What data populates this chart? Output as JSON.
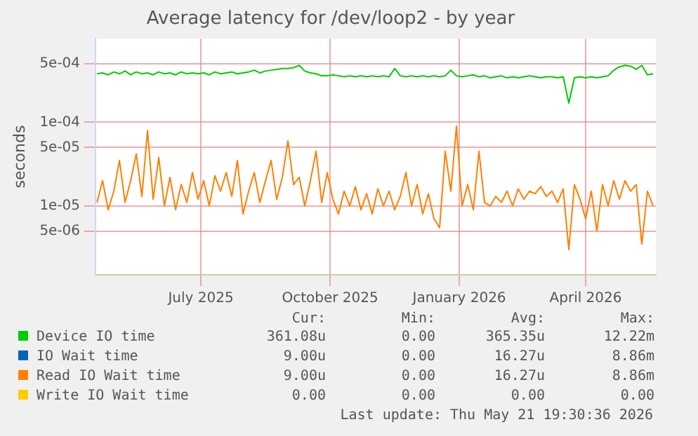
{
  "chart_data": {
    "type": "line",
    "title": "Average latency for /dev/loop2 - by year",
    "ylabel": "seconds",
    "x": [
      "2025-04-18",
      "2025-04-22",
      "2025-04-26",
      "2025-04-30",
      "2025-05-04",
      "2025-05-08",
      "2025-05-12",
      "2025-05-16",
      "2025-05-20",
      "2025-05-24",
      "2025-05-28",
      "2025-06-01",
      "2025-06-05",
      "2025-06-09",
      "2025-06-13",
      "2025-06-17",
      "2025-06-21",
      "2025-06-25",
      "2025-06-29",
      "2025-07-03",
      "2025-07-07",
      "2025-07-11",
      "2025-07-15",
      "2025-07-19",
      "2025-07-23",
      "2025-07-27",
      "2025-07-31",
      "2025-08-04",
      "2025-08-08",
      "2025-08-12",
      "2025-08-16",
      "2025-08-20",
      "2025-08-24",
      "2025-08-28",
      "2025-09-01",
      "2025-09-05",
      "2025-09-09",
      "2025-09-13",
      "2025-09-17",
      "2025-09-21",
      "2025-09-25",
      "2025-09-29",
      "2025-10-03",
      "2025-10-07",
      "2025-10-11",
      "2025-10-15",
      "2025-10-19",
      "2025-10-23",
      "2025-10-27",
      "2025-10-31",
      "2025-11-04",
      "2025-11-08",
      "2025-11-12",
      "2025-11-16",
      "2025-11-20",
      "2025-11-24",
      "2025-11-28",
      "2025-12-02",
      "2025-12-06",
      "2025-12-10",
      "2025-12-14",
      "2025-12-18",
      "2025-12-22",
      "2025-12-26",
      "2025-12-30",
      "2026-01-03",
      "2026-01-07",
      "2026-01-11",
      "2026-01-15",
      "2026-01-19",
      "2026-01-23",
      "2026-01-27",
      "2026-01-31",
      "2026-02-04",
      "2026-02-08",
      "2026-02-12",
      "2026-02-16",
      "2026-02-20",
      "2026-02-24",
      "2026-02-28",
      "2026-03-04",
      "2026-03-08",
      "2026-03-12",
      "2026-03-16",
      "2026-03-20",
      "2026-03-24",
      "2026-03-28",
      "2026-04-01",
      "2026-04-05",
      "2026-04-09",
      "2026-04-13",
      "2026-04-17",
      "2026-04-21",
      "2026-04-25",
      "2026-04-29",
      "2026-05-03",
      "2026-05-07",
      "2026-05-11",
      "2026-05-15",
      "2026-05-19"
    ],
    "series": [
      {
        "name": "Device IO time",
        "color": "#00cc00",
        "values": [
          0.00038,
          0.00039,
          0.00037,
          0.0004,
          0.00038,
          0.00041,
          0.00037,
          0.0004,
          0.00038,
          0.00039,
          0.00037,
          0.0004,
          0.00038,
          0.00039,
          0.00037,
          0.0004,
          0.00038,
          0.00039,
          0.00038,
          0.00039,
          0.00037,
          0.0004,
          0.00038,
          0.00039,
          0.0004,
          0.00038,
          0.00039,
          0.0004,
          0.00042,
          0.00039,
          0.00041,
          0.00042,
          0.00043,
          0.00044,
          0.00044,
          0.00045,
          0.00048,
          0.00041,
          0.00039,
          0.00038,
          0.00036,
          0.00036,
          0.00037,
          0.00036,
          0.00035,
          0.00036,
          0.00035,
          0.00036,
          0.00035,
          0.00036,
          0.00035,
          0.00036,
          0.00035,
          0.00044,
          0.00036,
          0.00035,
          0.00036,
          0.00035,
          0.00036,
          0.00035,
          0.00036,
          0.00035,
          0.00036,
          0.00042,
          0.00036,
          0.00035,
          0.00036,
          0.00037,
          0.00035,
          0.00036,
          0.00034,
          0.00035,
          0.00036,
          0.00034,
          0.00035,
          0.00034,
          0.00035,
          0.00036,
          0.00035,
          0.00034,
          0.00035,
          0.00035,
          0.00034,
          0.00035,
          0.00017,
          0.00034,
          0.00035,
          0.00034,
          0.00035,
          0.00034,
          0.00035,
          0.00036,
          0.00042,
          0.00046,
          0.00048,
          0.00047,
          0.00043,
          0.00048,
          0.00037,
          0.00038
        ]
      },
      {
        "name": "IO Wait time",
        "color": "#0066b3",
        "values": [
          null,
          null,
          null,
          null,
          null,
          null,
          null,
          null,
          null,
          null,
          null,
          null,
          null,
          null,
          null,
          null,
          null,
          null,
          null,
          null,
          null,
          null,
          null,
          null,
          null,
          null,
          null,
          null,
          null,
          null,
          null,
          null,
          null,
          null,
          null,
          null,
          null,
          null,
          null,
          null,
          null,
          null,
          null,
          null,
          null,
          null,
          null,
          null,
          null,
          null,
          null,
          null,
          null,
          null,
          null,
          null,
          null,
          null,
          null,
          null,
          null,
          null,
          null,
          null,
          null,
          null,
          null,
          null,
          null,
          null,
          null,
          null,
          null,
          null,
          null,
          null,
          null,
          null,
          null,
          null,
          null,
          null,
          null,
          null,
          null,
          null,
          null,
          null,
          null,
          null,
          null,
          null,
          null,
          null,
          null,
          null,
          null,
          null,
          null,
          null
        ]
      },
      {
        "name": "Read IO Wait time",
        "color": "#ff8000",
        "values": [
          1.1e-05,
          2e-05,
          9e-06,
          1.5e-05,
          3.5e-05,
          1.1e-05,
          2e-05,
          4.2e-05,
          1.3e-05,
          8e-05,
          1.2e-05,
          3.8e-05,
          1e-05,
          2.2e-05,
          9e-06,
          1.8e-05,
          1.1e-05,
          2.5e-05,
          1.2e-05,
          2e-05,
          1e-05,
          2.3e-05,
          1.5e-05,
          2.5e-05,
          1.3e-05,
          3.5e-05,
          8e-06,
          1.5e-05,
          2.5e-05,
          1.1e-05,
          2e-05,
          3.5e-05,
          1.2e-05,
          2.2e-05,
          6e-05,
          1.8e-05,
          2.2e-05,
          1e-05,
          2e-05,
          4.5e-05,
          1.1e-05,
          2.5e-05,
          1.2e-05,
          8e-06,
          1.5e-05,
          1e-05,
          1.7e-05,
          9e-06,
          1.4e-05,
          8e-06,
          1.6e-05,
          1e-05,
          1.5e-05,
          9e-06,
          1.3e-05,
          2.5e-05,
          1e-05,
          1.8e-05,
          8e-06,
          1.4e-05,
          7e-06,
          5.5e-06,
          4.5e-05,
          1.5e-05,
          9e-05,
          1e-05,
          1.8e-05,
          9e-06,
          4.5e-05,
          1.1e-05,
          1e-05,
          1.3e-05,
          1.1e-05,
          1.5e-05,
          1e-05,
          1.6e-05,
          1.2e-05,
          1.5e-05,
          1.4e-05,
          1.7e-05,
          1.3e-05,
          1.5e-05,
          1.1e-05,
          1.6e-05,
          3e-06,
          1.8e-05,
          1.2e-05,
          7e-06,
          1.5e-05,
          5e-06,
          1.8e-05,
          1e-05,
          2e-05,
          1.2e-05,
          2e-05,
          1.5e-05,
          1.8e-05,
          3.5e-06,
          1.5e-05,
          1e-05
        ]
      },
      {
        "name": "Write IO Wait time",
        "color": "#ffcc00",
        "values": [
          null,
          null,
          null,
          null,
          null,
          null,
          null,
          null,
          null,
          null,
          null,
          null,
          null,
          null,
          null,
          null,
          null,
          null,
          null,
          null,
          null,
          null,
          null,
          null,
          null,
          null,
          null,
          null,
          null,
          null,
          null,
          null,
          null,
          null,
          null,
          null,
          null,
          null,
          null,
          null,
          null,
          null,
          null,
          null,
          null,
          null,
          null,
          null,
          null,
          null,
          null,
          null,
          null,
          null,
          null,
          null,
          null,
          null,
          null,
          null,
          null,
          null,
          null,
          null,
          null,
          null,
          null,
          null,
          null,
          null,
          null,
          null,
          null,
          null,
          null,
          null,
          null,
          null,
          null,
          null,
          null,
          null,
          null,
          null,
          null,
          null,
          null,
          null,
          null,
          null,
          null,
          null,
          null,
          null,
          null,
          null,
          null,
          null,
          null,
          null
        ]
      }
    ],
    "xlim": [
      "2025-04-17",
      "2026-05-21"
    ],
    "xticks": [
      {
        "value": "2025-07-01",
        "label": "July 2025"
      },
      {
        "value": "2025-10-01",
        "label": "October 2025"
      },
      {
        "value": "2026-01-01",
        "label": "January 2026"
      },
      {
        "value": "2026-04-01",
        "label": "April 2026"
      }
    ],
    "ylim": [
      1.5e-06,
      0.001
    ],
    "yticks": [
      {
        "value": 5e-06,
        "label": "5e-06"
      },
      {
        "value": 1e-05,
        "label": "1e-05"
      },
      {
        "value": 5e-05,
        "label": "5e-05"
      },
      {
        "value": 0.0001,
        "label": "1e-04"
      },
      {
        "value": 0.0005,
        "label": "5e-04"
      }
    ],
    "log": "y",
    "grid": true,
    "legend": "bottom",
    "marker": "none",
    "line_style": "solid",
    "annotations": [
      "Cur:",
      "Min:",
      "Avg:",
      "Max:",
      "361.08u",
      "0.00",
      "365.35u",
      "12.22m",
      "9.00u",
      "0.00",
      "16.27u",
      "8.86m",
      "9.00u",
      "0.00",
      "16.27u",
      "8.86m",
      "0.00",
      "0.00",
      "0.00",
      "0.00",
      "Last update: Thu May 21 19:30:36 2026"
    ]
  }
}
